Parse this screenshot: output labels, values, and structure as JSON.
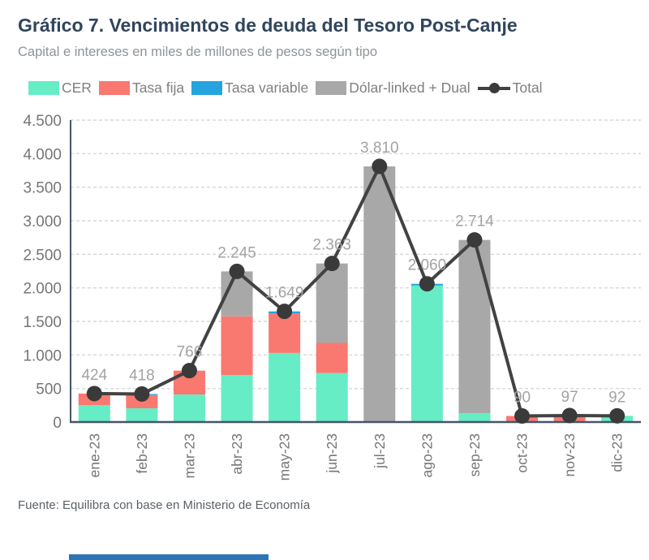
{
  "header": {
    "title": "Gráfico 7. Vencimientos de deuda del Tesoro Post-Canje",
    "subtitle": "Capital e intereses en miles de millones de pesos según tipo"
  },
  "legend": {
    "items": [
      {
        "label": "CER",
        "color": "#66EDC6"
      },
      {
        "label": "Tasa fija",
        "color": "#F97870"
      },
      {
        "label": "Tasa variable",
        "color": "#25A4DF"
      },
      {
        "label": "Dólar-linked + Dual",
        "color": "#A8A8A8"
      }
    ],
    "total_label": "Total"
  },
  "footer": {
    "source": "Fuente: Equilibra con base en Ministerio de Economía"
  },
  "colors": {
    "cer": "#66EDC6",
    "tasa_fija": "#F97870",
    "tasa_variable": "#25A4DF",
    "dolar_linked": "#A8A8A8",
    "total_line": "#424242",
    "total_dot": "#3A3A3A",
    "grid": "#D8D8D8",
    "axis": "#44546A",
    "tick_text": "#767676",
    "value_label": "#A3A3A3",
    "title_text": "#31455C",
    "accent_bar": "#2E74B5"
  },
  "chart_data": {
    "type": "bar",
    "subtype": "stacked-bars-with-total-line",
    "title": "Gráfico 7. Vencimientos de deuda del Tesoro Post-Canje",
    "subtitle": "Capital e intereses en miles de millones de pesos según tipo",
    "categories": [
      "ene-23",
      "feb-23",
      "mar-23",
      "abr-23",
      "may-23",
      "jun-23",
      "jul-23",
      "ago-23",
      "sep-23",
      "oct-23",
      "nov-23",
      "dic-23"
    ],
    "series": [
      {
        "name": "CER",
        "color_key": "cer",
        "values": [
          250,
          205,
          410,
          700,
          1030,
          730,
          0,
          2035,
          130,
          0,
          0,
          92
        ]
      },
      {
        "name": "Tasa fija",
        "color_key": "tasa_fija",
        "values": [
          174,
          198,
          356,
          875,
          590,
          450,
          0,
          0,
          0,
          90,
          97,
          0
        ]
      },
      {
        "name": "Tasa variable",
        "color_key": "tasa_variable",
        "values": [
          0,
          15,
          0,
          0,
          29,
          0,
          0,
          25,
          0,
          0,
          0,
          0
        ]
      },
      {
        "name": "Dólar-linked + Dual",
        "color_key": "dolar_linked",
        "values": [
          0,
          0,
          0,
          670,
          0,
          1183,
          3810,
          0,
          2584,
          0,
          0,
          0
        ]
      }
    ],
    "line_series": {
      "name": "Total",
      "values": [
        424,
        418,
        766,
        2245,
        1649,
        2363,
        3810,
        2060,
        2714,
        90,
        97,
        92
      ],
      "labels": [
        "424",
        "418",
        "766",
        "2.245",
        "1.649",
        "2.363",
        "3.810",
        "2.060",
        "2.714",
        "90",
        "97",
        "92"
      ]
    },
    "y_ticks": [
      "0",
      "500",
      "1.000",
      "1.500",
      "2.000",
      "2.500",
      "3.000",
      "3.500",
      "4.000",
      "4.500"
    ],
    "ylim": [
      0,
      4500
    ],
    "grid": "horizontal-dashed",
    "legend_position": "top-left",
    "xlabel": "",
    "ylabel": ""
  }
}
